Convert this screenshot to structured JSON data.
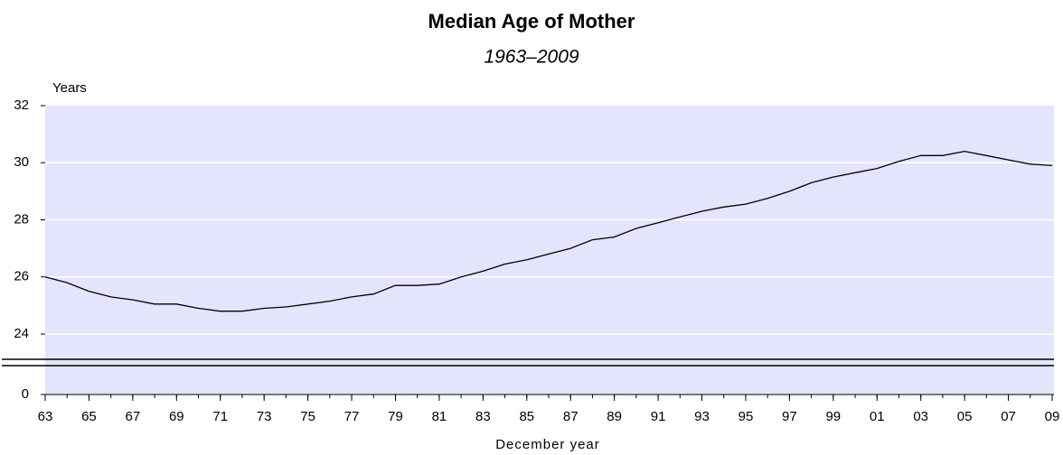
{
  "chart_data": {
    "type": "line",
    "title": "Median Age of Mother",
    "subtitle": "1963–2009",
    "y_label": "Years",
    "x_label": "December year",
    "x": [
      1963,
      1964,
      1965,
      1966,
      1967,
      1968,
      1969,
      1970,
      1971,
      1972,
      1973,
      1974,
      1975,
      1976,
      1977,
      1978,
      1979,
      1980,
      1981,
      1982,
      1983,
      1984,
      1985,
      1986,
      1987,
      1988,
      1989,
      1990,
      1991,
      1992,
      1993,
      1994,
      1995,
      1996,
      1997,
      1998,
      1999,
      2000,
      2001,
      2002,
      2003,
      2004,
      2005,
      2006,
      2007,
      2008,
      2009
    ],
    "series": [
      {
        "name": "Median age",
        "color": "#000000",
        "values": [
          26.0,
          25.8,
          25.5,
          25.3,
          25.2,
          25.05,
          25.05,
          24.9,
          24.8,
          24.8,
          24.9,
          24.95,
          25.05,
          25.15,
          25.3,
          25.4,
          25.7,
          25.7,
          25.75,
          26.0,
          26.2,
          26.45,
          26.6,
          26.8,
          27.0,
          27.3,
          27.4,
          27.7,
          27.9,
          28.1,
          28.3,
          28.45,
          28.55,
          28.75,
          29.0,
          29.3,
          29.5,
          29.65,
          29.8,
          30.05,
          30.25,
          30.25,
          30.4,
          30.25,
          30.1,
          29.95,
          29.9
        ]
      }
    ],
    "xlim": [
      1963,
      2009
    ],
    "xticks": [
      {
        "value": 1963,
        "label": "63"
      },
      {
        "value": 1965,
        "label": "65"
      },
      {
        "value": 1967,
        "label": "67"
      },
      {
        "value": 1969,
        "label": "69"
      },
      {
        "value": 1971,
        "label": "71"
      },
      {
        "value": 1973,
        "label": "73"
      },
      {
        "value": 1975,
        "label": "75"
      },
      {
        "value": 1977,
        "label": "77"
      },
      {
        "value": 1979,
        "label": "79"
      },
      {
        "value": 1981,
        "label": "81"
      },
      {
        "value": 1983,
        "label": "83"
      },
      {
        "value": 1985,
        "label": "85"
      },
      {
        "value": 1987,
        "label": "87"
      },
      {
        "value": 1989,
        "label": "89"
      },
      {
        "value": 1991,
        "label": "91"
      },
      {
        "value": 1993,
        "label": "93"
      },
      {
        "value": 1995,
        "label": "95"
      },
      {
        "value": 1997,
        "label": "97"
      },
      {
        "value": 1999,
        "label": "99"
      },
      {
        "value": 2001,
        "label": "01"
      },
      {
        "value": 2003,
        "label": "03"
      },
      {
        "value": 2005,
        "label": "05"
      },
      {
        "value": 2007,
        "label": "07"
      },
      {
        "value": 2009,
        "label": "09"
      }
    ],
    "ylim": [
      0,
      32
    ],
    "yticks": [
      0,
      24,
      26,
      28,
      30,
      32
    ],
    "y_axis_break": true,
    "grid": true,
    "background": "#e4e4fc"
  }
}
